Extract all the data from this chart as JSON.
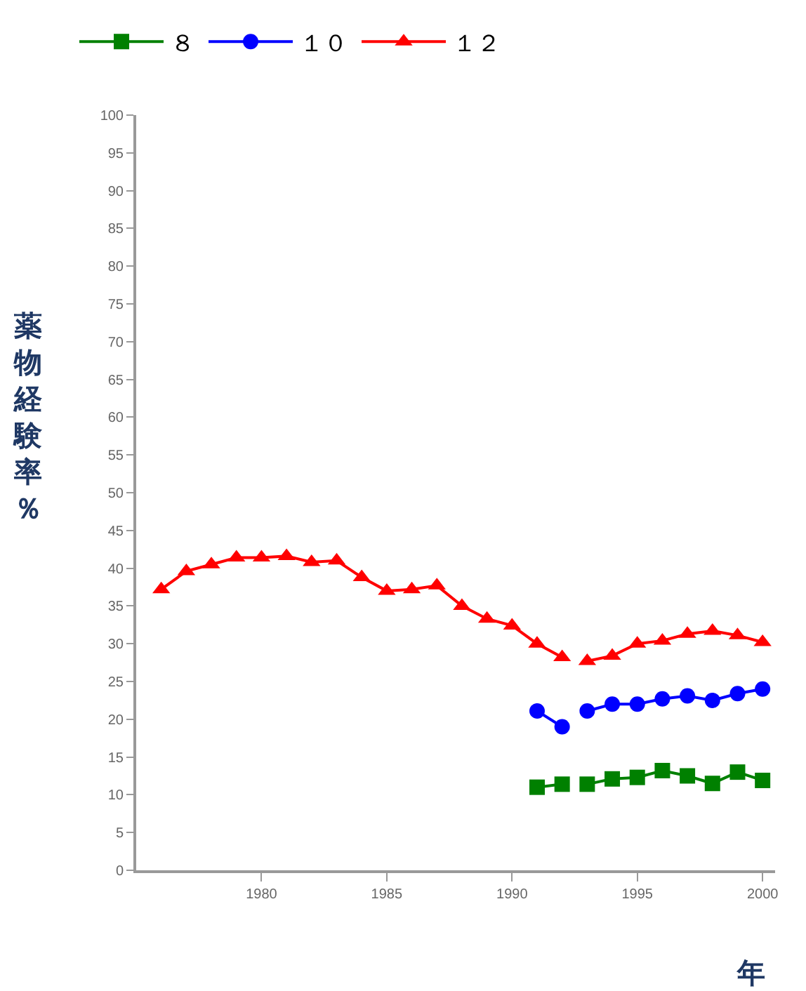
{
  "chart_data": {
    "type": "line",
    "ylabel": "薬物経験率％",
    "xlabel": "年",
    "x": [
      1976,
      1977,
      1978,
      1979,
      1980,
      1981,
      1982,
      1983,
      1984,
      1985,
      1986,
      1987,
      1988,
      1989,
      1990,
      1991,
      1992,
      1992.5,
      1993,
      1994,
      1995,
      1996,
      1997,
      1998,
      1999,
      2000
    ],
    "series": [
      {
        "name": "８",
        "color": "#008000",
        "marker": "square",
        "values": [
          null,
          null,
          null,
          null,
          null,
          null,
          null,
          null,
          null,
          null,
          null,
          null,
          null,
          null,
          null,
          11.0,
          11.4,
          null,
          11.4,
          12.1,
          12.3,
          13.2,
          12.5,
          11.5,
          13.0,
          11.9
        ]
      },
      {
        "name": "１０",
        "color": "#0000ff",
        "marker": "circle",
        "values": [
          null,
          null,
          null,
          null,
          null,
          null,
          null,
          null,
          null,
          null,
          null,
          null,
          null,
          null,
          null,
          21.1,
          19.0,
          null,
          21.1,
          22.0,
          22.0,
          22.7,
          23.1,
          22.5,
          23.4,
          24.0
        ]
      },
      {
        "name": "１２",
        "color": "#ff0000",
        "marker": "triangle",
        "values": [
          37.2,
          39.6,
          40.5,
          41.4,
          41.4,
          41.6,
          40.8,
          41.0,
          38.8,
          37.0,
          37.2,
          37.7,
          35.0,
          33.3,
          32.4,
          30.0,
          28.2,
          null,
          27.7,
          28.4,
          30.0,
          30.4,
          31.3,
          31.7,
          31.1,
          30.2
        ]
      }
    ],
    "xlim": [
      1975,
      2000.5
    ],
    "xticks": [
      1980,
      1985,
      1990,
      1995,
      2000
    ],
    "ylim": [
      0,
      100
    ],
    "yticks": [
      0,
      5,
      10,
      15,
      20,
      25,
      30,
      35,
      40,
      45,
      50,
      55,
      60,
      65,
      70,
      75,
      80,
      85,
      90,
      95,
      100
    ],
    "legend": "top left"
  }
}
